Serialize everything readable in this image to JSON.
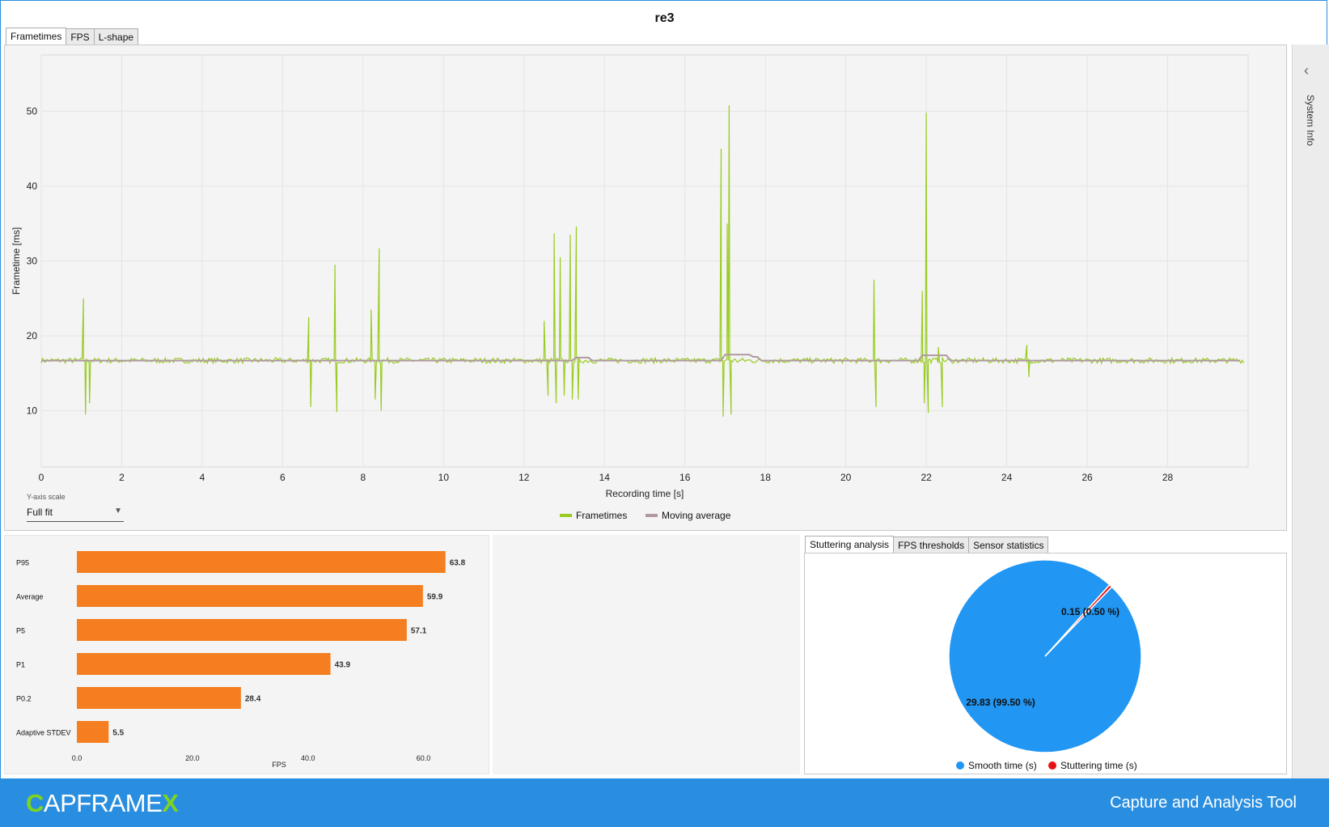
{
  "window": {
    "title": "re3"
  },
  "tabs_main": [
    {
      "label": "Frametimes",
      "active": true
    },
    {
      "label": "FPS",
      "active": false
    },
    {
      "label": "L-shape",
      "active": false
    }
  ],
  "side_panel": {
    "label": "System Info",
    "icon": "chevron-left-icon"
  },
  "yaxis_scale": {
    "label": "Y-axis scale",
    "value": "Full fit"
  },
  "legend": [
    {
      "label": "Frametimes",
      "color": "#99cc22"
    },
    {
      "label": "Moving average",
      "color": "#b09aa0"
    }
  ],
  "chart_data": [
    {
      "type": "line",
      "xlabel": "Recording time [s]",
      "ylabel": "Frametime [ms]",
      "xlim": [
        0,
        30
      ],
      "ylim": [
        2.5,
        57.5
      ],
      "xticks": [
        0,
        2,
        4,
        6,
        8,
        10,
        12,
        14,
        16,
        18,
        20,
        22,
        24,
        26,
        28
      ],
      "yticks": [
        10,
        20,
        30,
        40,
        50
      ],
      "grid": true,
      "legend_position": "bottom",
      "series": [
        {
          "name": "Frametimes",
          "color": "#99cc22",
          "baseline": 16.7,
          "spikes": [
            {
              "x": 1.05,
              "y": 25.0
            },
            {
              "x": 1.1,
              "y": 9.5
            },
            {
              "x": 1.2,
              "y": 11.0
            },
            {
              "x": 6.65,
              "y": 22.5
            },
            {
              "x": 6.7,
              "y": 10.5
            },
            {
              "x": 7.3,
              "y": 29.5
            },
            {
              "x": 7.35,
              "y": 9.8
            },
            {
              "x": 8.2,
              "y": 23.5
            },
            {
              "x": 8.3,
              "y": 11.5
            },
            {
              "x": 8.4,
              "y": 31.7
            },
            {
              "x": 8.45,
              "y": 10.0
            },
            {
              "x": 12.5,
              "y": 22.0
            },
            {
              "x": 12.6,
              "y": 12.0
            },
            {
              "x": 12.75,
              "y": 33.7
            },
            {
              "x": 12.8,
              "y": 11.0
            },
            {
              "x": 12.9,
              "y": 30.5
            },
            {
              "x": 13.0,
              "y": 12.0
            },
            {
              "x": 13.15,
              "y": 33.5
            },
            {
              "x": 13.2,
              "y": 11.5
            },
            {
              "x": 13.3,
              "y": 34.6
            },
            {
              "x": 13.35,
              "y": 11.5
            },
            {
              "x": 16.9,
              "y": 45.0
            },
            {
              "x": 16.95,
              "y": 9.2
            },
            {
              "x": 17.1,
              "y": 50.8
            },
            {
              "x": 17.15,
              "y": 9.5
            },
            {
              "x": 17.05,
              "y": 35.0
            },
            {
              "x": 20.7,
              "y": 27.5
            },
            {
              "x": 20.75,
              "y": 10.5
            },
            {
              "x": 21.9,
              "y": 26.0
            },
            {
              "x": 21.95,
              "y": 11.0
            },
            {
              "x": 22.0,
              "y": 49.8
            },
            {
              "x": 22.05,
              "y": 9.7
            },
            {
              "x": 22.3,
              "y": 18.5
            },
            {
              "x": 22.4,
              "y": 10.5
            },
            {
              "x": 24.5,
              "y": 18.8
            },
            {
              "x": 24.55,
              "y": 14.5
            }
          ]
        },
        {
          "name": "Moving average",
          "color": "#b09aa0",
          "baseline": 16.7,
          "bumps": [
            {
              "x0": 13.2,
              "x1": 13.6,
              "y": 17.1
            },
            {
              "x0": 16.9,
              "x1": 17.6,
              "y": 17.5
            },
            {
              "x0": 17.6,
              "x1": 17.8,
              "y": 17.2
            },
            {
              "x0": 21.9,
              "x1": 22.6,
              "y": 17.4
            }
          ]
        }
      ]
    },
    {
      "type": "bar",
      "orientation": "horizontal",
      "xlabel": "FPS",
      "xlim": [
        0,
        70
      ],
      "xticks": [
        "0.0",
        "20.0",
        "40.0",
        "60.0"
      ],
      "categories": [
        "P95",
        "Average",
        "P5",
        "P1",
        "P0.2",
        "Adaptive STDEV"
      ],
      "values": [
        63.8,
        59.9,
        57.1,
        43.9,
        28.4,
        5.5
      ],
      "value_labels": [
        "63.8",
        "59.9",
        "57.1",
        "43.9",
        "28.4",
        "5.5"
      ],
      "color": "#f47e20"
    },
    {
      "type": "pie",
      "legend_position": "bottom",
      "slices": [
        {
          "name": "Smooth time (s)",
          "value": 29.83,
          "label": "29.83 (99.50 %)",
          "color": "#2196f3"
        },
        {
          "name": "Stuttering time (s)",
          "value": 0.15,
          "label": "0.15 (0.50 %)",
          "color": "#e81010"
        }
      ]
    }
  ],
  "tabs_stutter": [
    {
      "label": "Stuttering analysis",
      "active": true
    },
    {
      "label": "FPS thresholds",
      "active": false
    },
    {
      "label": "Sensor statistics",
      "active": false
    }
  ],
  "footer": {
    "logo_first": "C",
    "logo_middle": "APFRAME",
    "logo_last": "X",
    "tagline": "Capture and Analysis Tool"
  }
}
